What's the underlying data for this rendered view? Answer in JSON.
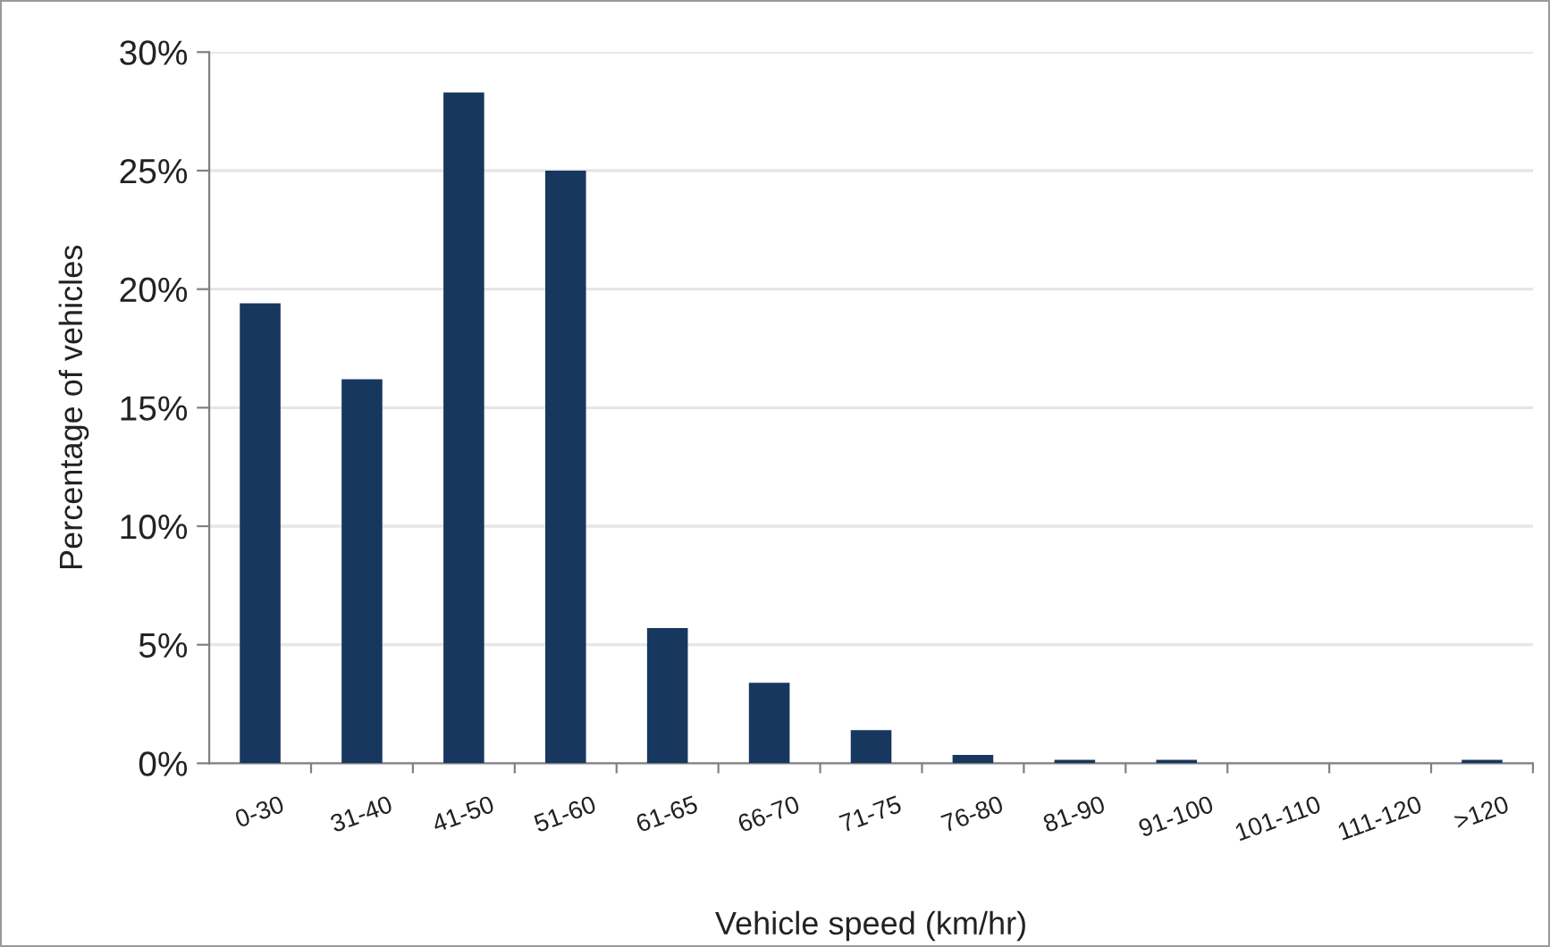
{
  "chart_data": {
    "type": "bar",
    "xlabel": "Vehicle speed (km/hr)",
    "ylabel": "Percentage of vehicles",
    "categories": [
      "0-30",
      "31-40",
      "41-50",
      "51-60",
      "61-65",
      "66-70",
      "71-75",
      "76-80",
      "81-90",
      "91-100",
      "101-110",
      "111-120",
      ">120"
    ],
    "values": [
      19.4,
      16.2,
      28.3,
      25.0,
      5.7,
      3.4,
      1.4,
      0.35,
      0.15,
      0.15,
      0,
      0,
      0.15
    ],
    "color": "#17375e",
    "ylim": [
      0,
      30
    ],
    "yticks": [
      {
        "value": 0,
        "label": "0%"
      },
      {
        "value": 5,
        "label": "5%"
      },
      {
        "value": 10,
        "label": "10%"
      },
      {
        "value": 15,
        "label": "15%"
      },
      {
        "value": 20,
        "label": "20%"
      },
      {
        "value": 25,
        "label": "25%"
      },
      {
        "value": 30,
        "label": "30%"
      }
    ],
    "grid": "y"
  }
}
